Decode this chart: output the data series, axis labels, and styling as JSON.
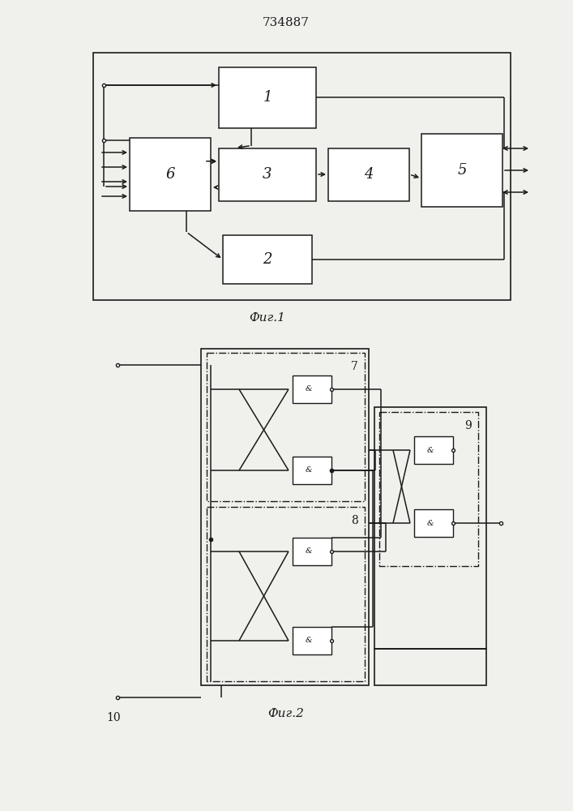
{
  "title": "734887",
  "fig1_caption": "Фиг.1",
  "fig2_caption": "Фиг.2",
  "bg_color": "#f0f0ec",
  "line_color": "#1a1a1a",
  "box_color": "#ffffff"
}
